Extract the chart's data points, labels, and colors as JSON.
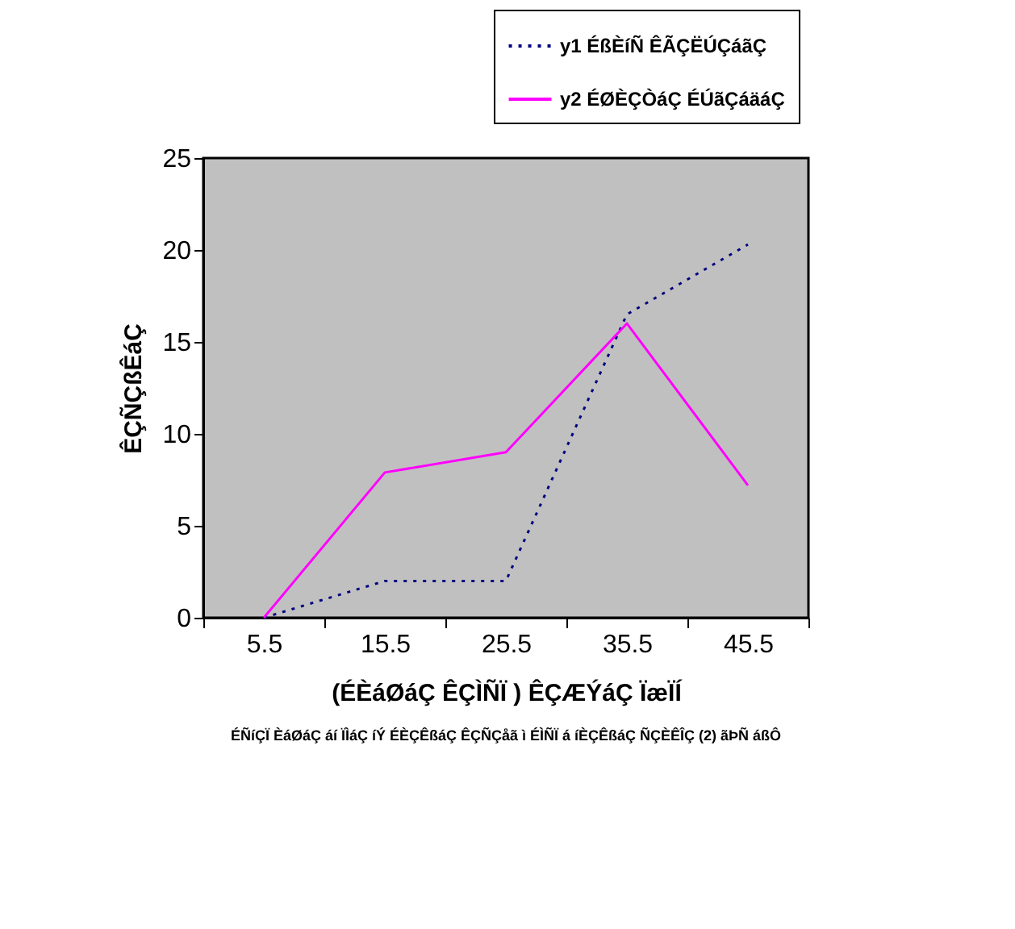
{
  "chart_data": {
    "type": "line",
    "xlabel": "(ÉÈáØáÇ ÊÇÌÑÏ ) ÊÇÆÝáÇ ÏæÏÍ",
    "ylabel": "ÊÇÑÇßÊáÇ",
    "categories": [
      "5.5",
      "15.5",
      "25.5",
      "35.5",
      "45.5"
    ],
    "series": [
      {
        "name": "y1 ÉßÈíÑ ÊÃÇËÚÇáãÇ",
        "color": "#000080",
        "line_style": "dotted",
        "values": [
          0,
          2,
          2,
          16.5,
          20.3
        ]
      },
      {
        "name": "y2 ÉØÈÇÒáÇ ÉÚãÇáäáÇ",
        "color": "#ff00ff",
        "line_style": "solid",
        "values": [
          0,
          7.9,
          9,
          16,
          7.2
        ]
      }
    ],
    "ylim": [
      0,
      25
    ],
    "yticks": [
      0,
      5,
      10,
      15,
      20,
      25
    ],
    "grid": false,
    "legend": "top right",
    "marker": "none",
    "annotations": [
      "ÉÑíÇÏ ÈáØáÇ áí ÏÌáÇ íÝ ÉÈÇÊßáÇ ÊÇÑÇåã ì ÉÌÑÏ á íÈÇÊßáÇ ÑÇÈÊÎÇ (2) ãÞÑ áßÔ"
    ]
  }
}
